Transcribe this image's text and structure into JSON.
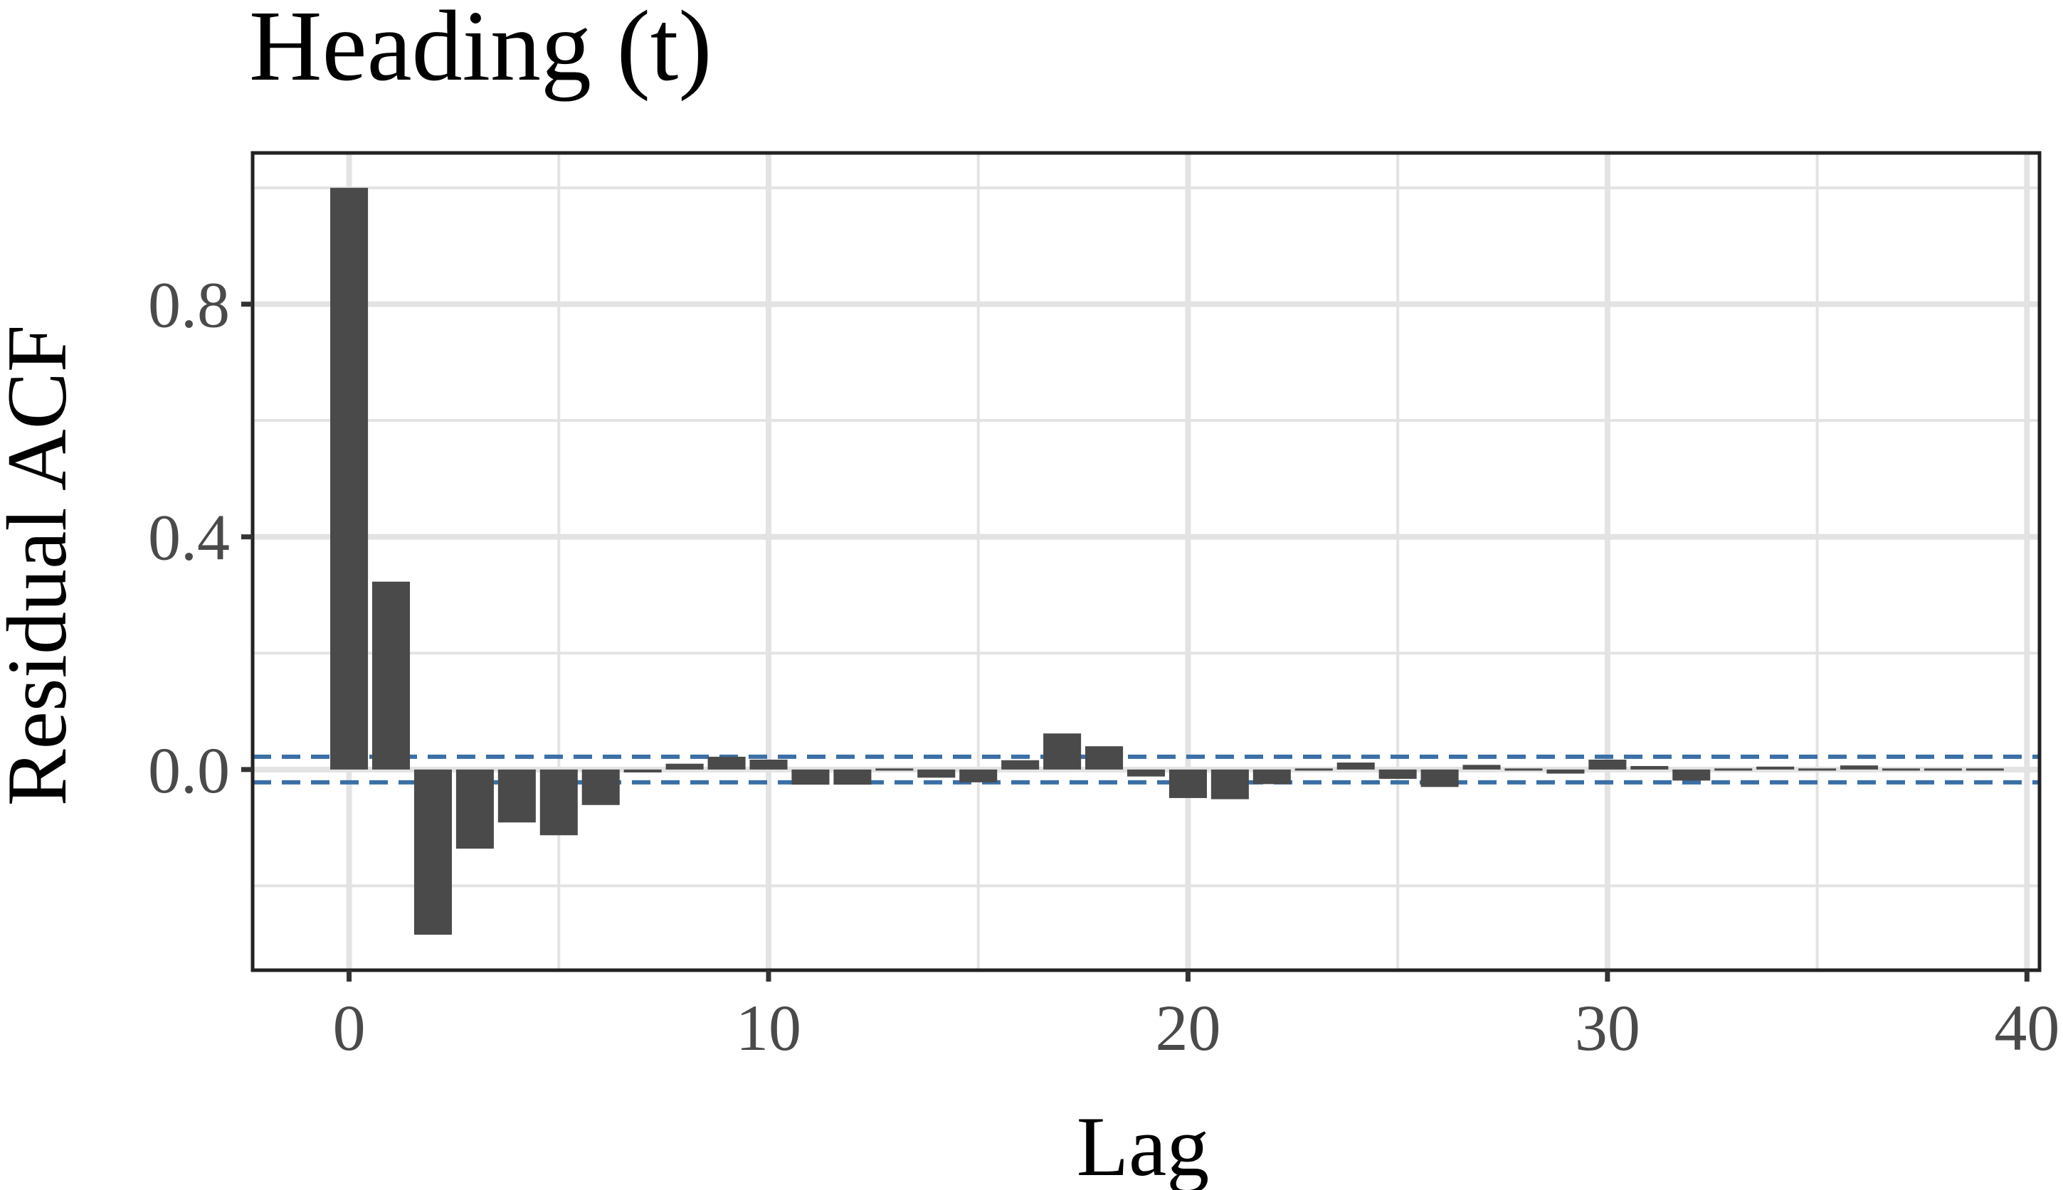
{
  "chart_data": {
    "type": "bar",
    "title": "Heading (t)",
    "xlabel": "Lag",
    "ylabel": "Residual ACF",
    "xlim": [
      -2.3,
      40.3
    ],
    "ylim": [
      -0.345,
      1.06
    ],
    "x_ticks": [
      0,
      10,
      20,
      30,
      40
    ],
    "x_tick_labels": [
      "0",
      "10",
      "20",
      "30",
      "40"
    ],
    "y_ticks": [
      0.0,
      0.4,
      0.8
    ],
    "y_tick_labels": [
      "0.0",
      "0.4",
      "0.8"
    ],
    "x_minor_gridlines": [
      5,
      15,
      25,
      35
    ],
    "y_minor_gridlines": [
      -0.2,
      0.2,
      0.6,
      1.0
    ],
    "grid": true,
    "legend": "none",
    "confidence_band": [
      -0.022,
      0.022
    ],
    "colors": {
      "bar": "#4a4a4a",
      "band": "#3b6fa6",
      "grid": "#e3e3e3",
      "axis": "#333333"
    },
    "lags": [
      0,
      1,
      2,
      3,
      4,
      5,
      6,
      7,
      8,
      9,
      10,
      11,
      12,
      13,
      14,
      15,
      16,
      17,
      18,
      19,
      20,
      21,
      22,
      23,
      24,
      25,
      26,
      27,
      28,
      29,
      30,
      31,
      32,
      33,
      34,
      35,
      36,
      37,
      38,
      39
    ],
    "values": [
      1.0,
      0.323,
      -0.284,
      -0.136,
      -0.091,
      -0.113,
      -0.061,
      -0.005,
      0.01,
      0.022,
      0.017,
      -0.026,
      -0.026,
      -0.003,
      -0.014,
      -0.022,
      0.016,
      0.062,
      0.04,
      -0.012,
      -0.049,
      -0.051,
      -0.025,
      -0.003,
      0.012,
      -0.016,
      -0.03,
      0.008,
      0.003,
      -0.007,
      0.017,
      0.006,
      -0.019,
      -0.002,
      0.005,
      0.002,
      0.007,
      -0.002,
      0.002,
      -0.003
    ]
  }
}
